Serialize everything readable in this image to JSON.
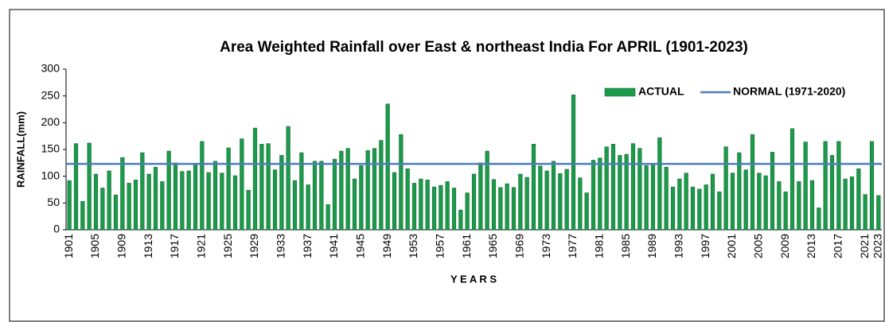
{
  "chart_data": {
    "type": "bar",
    "title": "Area Weighted Rainfall  over East & northeast India  For  APRIL (1901-2023)",
    "y_label": "RAINFALL(mm)",
    "x_label": "Y E A R S",
    "categories": [
      "1901",
      null,
      null,
      null,
      "1905",
      null,
      null,
      null,
      "1909",
      null,
      null,
      null,
      "1913",
      null,
      null,
      null,
      "1917",
      null,
      null,
      null,
      "1921",
      null,
      null,
      null,
      "1925",
      null,
      null,
      null,
      "1929",
      null,
      null,
      null,
      "1933",
      null,
      null,
      null,
      "1937",
      null,
      null,
      null,
      "1941",
      null,
      null,
      null,
      "1945",
      null,
      null,
      null,
      "1949",
      null,
      null,
      null,
      "1953",
      null,
      null,
      null,
      "1957",
      null,
      null,
      null,
      "1961",
      null,
      null,
      null,
      "1965",
      null,
      null,
      null,
      "1969",
      null,
      null,
      null,
      "1973",
      null,
      null,
      null,
      "1977",
      null,
      null,
      null,
      "1981",
      null,
      null,
      null,
      "1985",
      null,
      null,
      null,
      "1989",
      null,
      null,
      null,
      "1993",
      null,
      null,
      null,
      "1997",
      null,
      null,
      null,
      "2001",
      null,
      null,
      null,
      "2005",
      null,
      null,
      null,
      "2009",
      null,
      null,
      null,
      "2013",
      null,
      null,
      null,
      "2017",
      null,
      null,
      null,
      "2021",
      null,
      "2023"
    ],
    "series": [
      {
        "name": "ACTUAL",
        "color": "#1a9b4a",
        "values": [
          92,
          161,
          53,
          162,
          104,
          78,
          110,
          65,
          135,
          87,
          93,
          144,
          104,
          117,
          90,
          147,
          125,
          109,
          110,
          122,
          165,
          107,
          128,
          106,
          153,
          101,
          170,
          74,
          190,
          160,
          161,
          112,
          139,
          193,
          92,
          144,
          84,
          128,
          128,
          47,
          132,
          147,
          152,
          95,
          120,
          148,
          152,
          167,
          235,
          107,
          178,
          114,
          87,
          95,
          93,
          80,
          83,
          90,
          78,
          37,
          69,
          104,
          125,
          147,
          94,
          79,
          86,
          79,
          104,
          98,
          160,
          119,
          110,
          128,
          105,
          113,
          252,
          97,
          69,
          130,
          134,
          155,
          160,
          139,
          141,
          161,
          152,
          120,
          122,
          172,
          117,
          80,
          95,
          106,
          80,
          76,
          84,
          104,
          71,
          155,
          106,
          144,
          112,
          178,
          106,
          101,
          145,
          90,
          71,
          189,
          90,
          164,
          92,
          41,
          165,
          139,
          165,
          95,
          99,
          114,
          66,
          165,
          64
        ]
      }
    ],
    "normal": {
      "name": "NORMAL (1971-2020)",
      "color": "#4a7ebb",
      "value": 123
    },
    "ylim": [
      0,
      300
    ],
    "yticks": [
      0,
      50,
      100,
      150,
      200,
      250,
      300
    ],
    "grid": false
  }
}
